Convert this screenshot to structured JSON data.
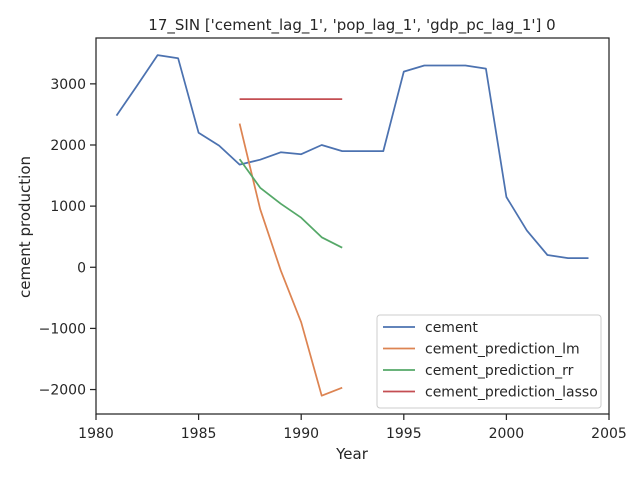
{
  "chart_data": {
    "type": "line",
    "title": "17_SIN ['cement_lag_1', 'pop_lag_1', 'gdp_pc_lag_1'] 0",
    "xlabel": "Year",
    "ylabel": "cement production",
    "xlim": [
      1980,
      2005
    ],
    "ylim": [
      -2400,
      3750
    ],
    "xticks": [
      1980,
      1985,
      1990,
      1995,
      2000,
      2005
    ],
    "yticks": [
      -2000,
      -1000,
      0,
      1000,
      2000,
      3000
    ],
    "legend_position": "lower-right",
    "grid": false,
    "series": [
      {
        "name": "cement",
        "color": "#4c72b0",
        "x": [
          1981,
          1982,
          1983,
          1984,
          1985,
          1986,
          1987,
          1988,
          1989,
          1990,
          1991,
          1992,
          1993,
          1994,
          1995,
          1996,
          1997,
          1998,
          1999,
          2000,
          2001,
          2002,
          2003,
          2004
        ],
        "y": [
          2480,
          2970,
          3470,
          3420,
          2200,
          1990,
          1680,
          1760,
          1880,
          1850,
          2000,
          1900,
          1900,
          1900,
          3200,
          3300,
          3300,
          3300,
          3250,
          1150,
          600,
          200,
          150,
          150
        ]
      },
      {
        "name": "cement_prediction_lm",
        "color": "#dd8452",
        "x": [
          1987,
          1988,
          1989,
          1990,
          1991,
          1992
        ],
        "y": [
          2350,
          950,
          -50,
          -900,
          -2100,
          -1970
        ]
      },
      {
        "name": "cement_prediction_rr",
        "color": "#55a868",
        "x": [
          1987,
          1988,
          1989,
          1990,
          1991,
          1992
        ],
        "y": [
          1770,
          1300,
          1040,
          810,
          490,
          320
        ]
      },
      {
        "name": "cement_prediction_lasso",
        "color": "#c44e52",
        "x": [
          1987,
          1988,
          1989,
          1990,
          1991,
          1992
        ],
        "y": [
          2750,
          2750,
          2750,
          2750,
          2750,
          2750
        ]
      }
    ]
  }
}
